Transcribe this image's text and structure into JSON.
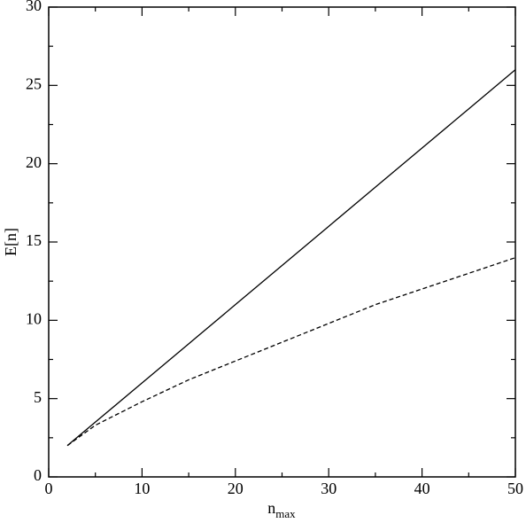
{
  "chart_data": {
    "type": "line",
    "xlabel": "n",
    "xlabel_sub": "max",
    "ylabel": "E[n]",
    "x": [
      2,
      5,
      10,
      15,
      20,
      25,
      30,
      35,
      40,
      45,
      50
    ],
    "series": [
      {
        "color": "#000000",
        "dashed": false,
        "values": [
          2,
          3.5,
          6,
          8.5,
          11,
          13.5,
          16,
          18.5,
          21,
          23.5,
          26
        ]
      },
      {
        "color": "#000000",
        "dashed": true,
        "values": [
          2,
          3.3,
          4.8,
          6.2,
          7.4,
          8.6,
          9.8,
          11,
          12,
          13,
          14
        ]
      }
    ],
    "xlim": [
      0,
      50
    ],
    "xticks": [
      0,
      10,
      20,
      30,
      40,
      50
    ],
    "xminorticks": [
      5,
      15,
      25,
      35,
      45
    ],
    "ylim": [
      0,
      30
    ],
    "yticks": [
      0,
      5,
      10,
      15,
      20,
      25,
      30
    ],
    "yminorticks": [
      2.5,
      7.5,
      12.5,
      17.5,
      22.5,
      27.5
    ]
  }
}
